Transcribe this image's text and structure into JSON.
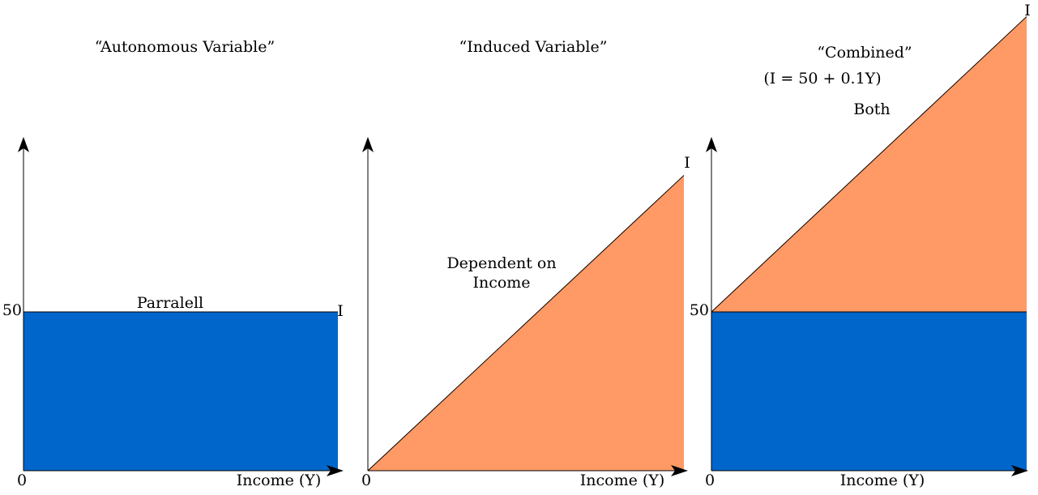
{
  "colors": {
    "autonomous_fill": "#0066cc",
    "induced_fill": "#ff9966",
    "axis": "#000000"
  },
  "chart_data": [
    {
      "type": "area",
      "title": "“Autonomous Variable”",
      "xlabel": "Income (Y)",
      "origin_label": "0",
      "ylim": [
        0,
        100
      ],
      "y_tick": {
        "value": 50,
        "label": "50"
      },
      "series": [
        {
          "name": "",
          "role": "autonomous",
          "x": [
            0,
            1
          ],
          "y": [
            50,
            50
          ],
          "fill": "autonomous_fill"
        }
      ],
      "line_end_label": "I",
      "annotations": [
        "Parralell"
      ]
    },
    {
      "type": "area",
      "title": "“Induced Variable”",
      "xlabel": "Income (Y)",
      "origin_label": "0",
      "ylim": [
        0,
        100
      ],
      "series": [
        {
          "name": "",
          "role": "induced",
          "x": [
            0,
            1
          ],
          "y": [
            0,
            93
          ],
          "fill": "induced_fill"
        }
      ],
      "line_end_label": "I",
      "annotations": [
        "Dependent on",
        "Income"
      ]
    },
    {
      "type": "area",
      "title": "“Combined”",
      "subtitle": "(I = 50 + 0.1Y)",
      "xlabel": "Income (Y)",
      "origin_label": "0",
      "ylim": [
        0,
        100
      ],
      "y_tick": {
        "value": 50,
        "label": "50"
      },
      "series": [
        {
          "name": "",
          "role": "autonomous",
          "x": [
            0,
            1
          ],
          "y": [
            50,
            50
          ],
          "fill": "autonomous_fill"
        },
        {
          "name": "",
          "role": "induced",
          "x": [
            0,
            1
          ],
          "y": [
            50,
            143
          ],
          "fill": "induced_fill"
        }
      ],
      "line_end_label": "I",
      "annotations": [
        "Both"
      ]
    }
  ]
}
